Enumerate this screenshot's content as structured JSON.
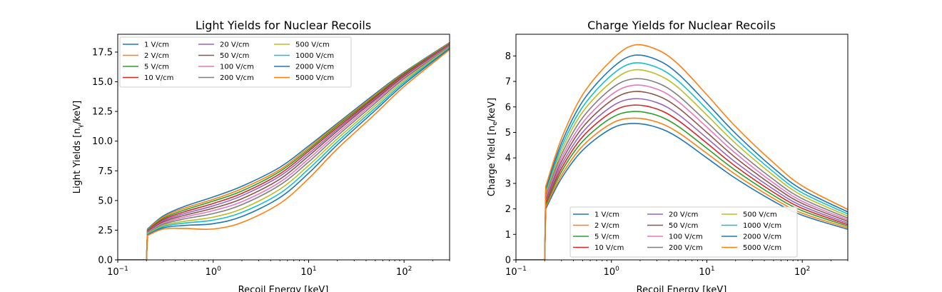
{
  "chart_data": [
    {
      "type": "line",
      "title": "Light Yields for Nuclear Recoils",
      "xlabel": "Recoil Energy [keV]",
      "ylabel": "Light Yields [n",
      "ylabel_sub": "γ",
      "ylabel_tail": "/keV]",
      "xscale": "log",
      "xlim": [
        0.1,
        300
      ],
      "ylim": [
        0,
        19
      ],
      "x_ticks": [
        {
          "v": 0.1,
          "base": "10",
          "exp": "−1"
        },
        {
          "v": 1,
          "base": "10",
          "exp": "0"
        },
        {
          "v": 10,
          "base": "10",
          "exp": "1"
        },
        {
          "v": 100,
          "base": "10",
          "exp": "2"
        }
      ],
      "y_ticks": [
        "0.0",
        "2.5",
        "5.0",
        "7.5",
        "10.0",
        "12.5",
        "15.0",
        "17.5"
      ],
      "legend": {
        "placement": "upper-left",
        "columns": 3
      },
      "x": [
        0.1,
        0.2,
        0.205,
        0.3,
        0.5,
        1,
        2,
        5,
        10,
        20,
        50,
        100,
        300
      ],
      "series": [
        {
          "name": "1 V/cm",
          "color": "#1f77b4",
          "values": [
            0,
            0,
            2.6,
            3.7,
            4.5,
            5.3,
            6.2,
            7.8,
            9.6,
            11.5,
            14.0,
            15.8,
            18.3
          ]
        },
        {
          "name": "2 V/cm",
          "color": "#ff7f0e",
          "values": [
            0,
            0,
            2.55,
            3.6,
            4.35,
            5.1,
            6.0,
            7.6,
            9.45,
            11.4,
            13.9,
            15.75,
            18.25
          ]
        },
        {
          "name": "5 V/cm",
          "color": "#2ca02c",
          "values": [
            0,
            0,
            2.5,
            3.5,
            4.2,
            4.95,
            5.8,
            7.45,
            9.3,
            11.3,
            13.8,
            15.7,
            18.2
          ]
        },
        {
          "name": "10 V/cm",
          "color": "#d62728",
          "values": [
            0,
            0,
            2.45,
            3.4,
            4.05,
            4.75,
            5.6,
            7.25,
            9.15,
            11.15,
            13.7,
            15.6,
            18.15
          ]
        },
        {
          "name": "20 V/cm",
          "color": "#9467bd",
          "values": [
            0,
            0,
            2.4,
            3.3,
            3.9,
            4.55,
            5.4,
            7.05,
            8.95,
            11.0,
            13.6,
            15.5,
            18.1
          ]
        },
        {
          "name": "50 V/cm",
          "color": "#8c564b",
          "values": [
            0,
            0,
            2.35,
            3.2,
            3.75,
            4.35,
            5.15,
            6.8,
            8.75,
            10.85,
            13.5,
            15.45,
            18.05
          ]
        },
        {
          "name": "100 V/cm",
          "color": "#e377c2",
          "values": [
            0,
            0,
            2.3,
            3.1,
            3.6,
            4.15,
            4.9,
            6.55,
            8.5,
            10.65,
            13.35,
            15.35,
            18.0
          ]
        },
        {
          "name": "200 V/cm",
          "color": "#7f7f7f",
          "values": [
            0,
            0,
            2.25,
            3.0,
            3.45,
            3.9,
            4.65,
            6.3,
            8.25,
            10.45,
            13.2,
            15.25,
            17.95
          ]
        },
        {
          "name": "500 V/cm",
          "color": "#bcbd22",
          "values": [
            0,
            0,
            2.2,
            2.9,
            3.25,
            3.6,
            4.3,
            5.95,
            7.95,
            10.2,
            13.0,
            15.1,
            17.9
          ]
        },
        {
          "name": "1000 V/cm",
          "color": "#17becf",
          "values": [
            0,
            0,
            2.15,
            2.8,
            3.1,
            3.35,
            4.0,
            5.6,
            7.65,
            9.95,
            12.8,
            14.95,
            17.85
          ]
        },
        {
          "name": "2000 V/cm",
          "color": "#1f77b4",
          "values": [
            0,
            0,
            2.1,
            2.7,
            2.9,
            3.05,
            3.65,
            5.25,
            7.3,
            9.7,
            12.6,
            14.8,
            17.8
          ]
        },
        {
          "name": "5000 V/cm",
          "color": "#ff7f0e",
          "values": [
            0,
            0,
            2.05,
            2.6,
            2.65,
            2.6,
            3.15,
            4.75,
            6.85,
            9.35,
            12.3,
            14.6,
            17.7
          ]
        }
      ]
    },
    {
      "type": "line",
      "title": "Charge Yields for Nuclear Recoils",
      "xlabel": "Recoil Energy [keV]",
      "ylabel": "Charge Yield [n",
      "ylabel_sub": "e",
      "ylabel_tail": "/keV]",
      "xscale": "log",
      "xlim": [
        0.1,
        300
      ],
      "ylim": [
        0,
        8.85
      ],
      "x_ticks": [
        {
          "v": 0.1,
          "base": "10",
          "exp": "−1"
        },
        {
          "v": 1,
          "base": "10",
          "exp": "0"
        },
        {
          "v": 10,
          "base": "10",
          "exp": "1"
        },
        {
          "v": 100,
          "base": "10",
          "exp": "2"
        }
      ],
      "y_ticks": [
        "0",
        "1",
        "2",
        "3",
        "4",
        "5",
        "6",
        "7",
        "8"
      ],
      "legend": {
        "placement": "lower-center",
        "columns": 3
      },
      "x": [
        0.1,
        0.2,
        0.205,
        0.3,
        0.5,
        1,
        1.7,
        3,
        5,
        10,
        20,
        50,
        100,
        300
      ],
      "series": [
        {
          "name": "1 V/cm",
          "color": "#1f77b4",
          "values": [
            0,
            0,
            2.0,
            3.2,
            4.3,
            5.15,
            5.35,
            5.2,
            4.8,
            4.0,
            3.2,
            2.3,
            1.75,
            1.2
          ]
        },
        {
          "name": "2 V/cm",
          "color": "#ff7f0e",
          "values": [
            0,
            0,
            2.07,
            3.32,
            4.47,
            5.35,
            5.56,
            5.41,
            5.0,
            4.18,
            3.35,
            2.41,
            1.83,
            1.26
          ]
        },
        {
          "name": "5 V/cm",
          "color": "#2ca02c",
          "values": [
            0,
            0,
            2.15,
            3.46,
            4.65,
            5.57,
            5.82,
            5.67,
            5.24,
            4.38,
            3.51,
            2.53,
            1.93,
            1.32
          ]
        },
        {
          "name": "10 V/cm",
          "color": "#d62728",
          "values": [
            0,
            0,
            2.23,
            3.59,
            4.83,
            5.79,
            6.07,
            5.92,
            5.47,
            4.58,
            3.67,
            2.65,
            2.02,
            1.38
          ]
        },
        {
          "name": "20 V/cm",
          "color": "#9467bd",
          "values": [
            0,
            0,
            2.3,
            3.72,
            5.01,
            6.01,
            6.32,
            6.17,
            5.71,
            4.78,
            3.83,
            2.77,
            2.11,
            1.44
          ]
        },
        {
          "name": "50 V/cm",
          "color": "#8c564b",
          "values": [
            0,
            0,
            2.38,
            3.86,
            5.2,
            6.25,
            6.6,
            6.45,
            5.97,
            5.0,
            4.01,
            2.9,
            2.21,
            1.51
          ]
        },
        {
          "name": "100 V/cm",
          "color": "#e377c2",
          "values": [
            0,
            0,
            2.45,
            3.99,
            5.38,
            6.48,
            6.85,
            6.7,
            6.21,
            5.21,
            4.18,
            3.02,
            2.3,
            1.57
          ]
        },
        {
          "name": "200 V/cm",
          "color": "#7f7f7f",
          "values": [
            0,
            0,
            2.53,
            4.13,
            5.58,
            6.72,
            7.1,
            6.95,
            6.45,
            5.41,
            4.35,
            3.15,
            2.4,
            1.64
          ]
        },
        {
          "name": "500 V/cm",
          "color": "#bcbd22",
          "values": [
            0,
            0,
            2.62,
            4.28,
            5.8,
            6.98,
            7.45,
            7.28,
            6.76,
            5.68,
            4.57,
            3.31,
            2.52,
            1.72
          ]
        },
        {
          "name": "1000 V/cm",
          "color": "#17becf",
          "values": [
            0,
            0,
            2.7,
            4.43,
            6.0,
            7.24,
            7.72,
            7.55,
            7.02,
            5.91,
            4.76,
            3.45,
            2.63,
            1.8
          ]
        },
        {
          "name": "2000 V/cm",
          "color": "#1f77b4",
          "values": [
            0,
            0,
            2.78,
            4.58,
            6.22,
            7.5,
            8.02,
            7.85,
            7.3,
            6.15,
            4.96,
            3.6,
            2.75,
            1.88
          ]
        },
        {
          "name": "5000 V/cm",
          "color": "#ff7f0e",
          "values": [
            0,
            0,
            2.88,
            4.76,
            6.48,
            7.83,
            8.42,
            8.25,
            7.68,
            6.48,
            5.23,
            3.81,
            2.9,
            1.98
          ]
        }
      ]
    }
  ]
}
